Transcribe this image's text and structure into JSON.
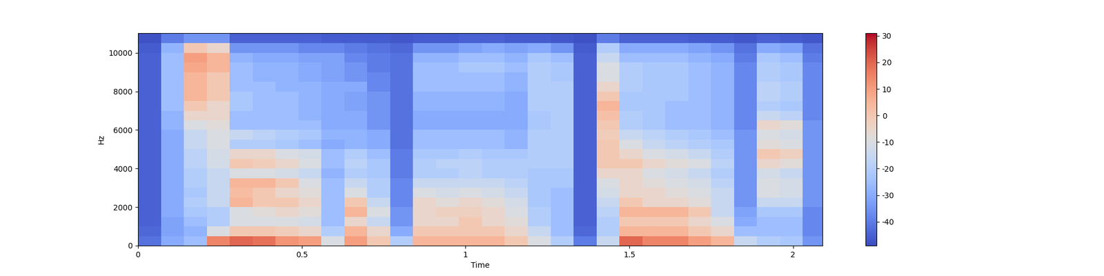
{
  "chart_data": {
    "type": "heatmap",
    "x_label": "Time",
    "y_label": "Hz",
    "x_edges": [
      0,
      0.07,
      0.14,
      0.21,
      0.28,
      0.35,
      0.42,
      0.49,
      0.56,
      0.63,
      0.7,
      0.77,
      0.84,
      0.91,
      0.98,
      1.05,
      1.12,
      1.19,
      1.26,
      1.33,
      1.4,
      1.47,
      1.54,
      1.61,
      1.68,
      1.75,
      1.82,
      1.89,
      1.96,
      2.03,
      2.1
    ],
    "y_edges": [
      0,
      500,
      1000,
      1500,
      2000,
      2500,
      3000,
      3500,
      4000,
      4500,
      5000,
      5500,
      6000,
      6500,
      7000,
      7500,
      8000,
      8500,
      9000,
      9500,
      10000,
      10500,
      11025
    ],
    "cells": [
      [
        -42,
        -44,
        -45,
        -45,
        -45,
        -45,
        -45,
        -45,
        -45,
        -45,
        -45,
        -45,
        -45,
        -45,
        -45,
        -45,
        -45,
        -45,
        -45,
        -45,
        -46,
        -48
      ],
      [
        -30,
        -32,
        -32,
        -30,
        -30,
        -30,
        -30,
        -30,
        -30,
        -30,
        -30,
        -30,
        -28,
        -28,
        -25,
        -25,
        -25,
        -25,
        -25,
        -25,
        -28,
        -40
      ],
      [
        -25,
        -28,
        -25,
        -22,
        -20,
        -22,
        -20,
        -20,
        -18,
        -18,
        -15,
        -15,
        -10,
        -5,
        0,
        5,
        5,
        5,
        8,
        10,
        0,
        -35
      ],
      [
        15,
        -10,
        -20,
        -20,
        -15,
        -15,
        -15,
        -15,
        -12,
        -12,
        -10,
        -10,
        -8,
        -5,
        -5,
        0,
        0,
        0,
        5,
        5,
        -5,
        -35
      ],
      [
        20,
        0,
        -10,
        -10,
        5,
        3,
        5,
        -10,
        0,
        -5,
        -20,
        -15,
        -25,
        -25,
        -22,
        -22,
        -25,
        -25,
        -25,
        -28,
        -35,
        -45
      ],
      [
        18,
        0,
        -10,
        -8,
        0,
        0,
        5,
        -10,
        -2,
        -5,
        -20,
        -18,
        -25,
        -25,
        -25,
        -25,
        -25,
        -28,
        -28,
        -30,
        -35,
        -45
      ],
      [
        12,
        -2,
        -10,
        -5,
        0,
        -5,
        0,
        -12,
        -5,
        -10,
        -22,
        -20,
        -25,
        -25,
        -25,
        -25,
        -28,
        -28,
        -28,
        -30,
        -35,
        -45
      ],
      [
        10,
        -5,
        -12,
        -8,
        -5,
        -8,
        -10,
        -15,
        -10,
        -12,
        -25,
        -22,
        -25,
        -28,
        -28,
        -28,
        -28,
        -30,
        -30,
        -32,
        -38,
        -45
      ],
      [
        -10,
        -20,
        -25,
        -25,
        -25,
        -25,
        -25,
        -28,
        -25,
        -25,
        -30,
        -28,
        -30,
        -30,
        -30,
        -30,
        -30,
        -32,
        -32,
        -32,
        -38,
        -46
      ],
      [
        10,
        5,
        -5,
        5,
        0,
        -10,
        -15,
        -20,
        -18,
        -20,
        -28,
        -28,
        -30,
        -30,
        -32,
        -32,
        -30,
        -35,
        -35,
        -38,
        -40,
        -46
      ],
      [
        0,
        -5,
        -15,
        -10,
        -15,
        -20,
        -20,
        -22,
        -22,
        -25,
        -30,
        -30,
        -35,
        -35,
        -35,
        -35,
        -38,
        -38,
        -40,
        -40,
        -42,
        -46
      ],
      [
        -20,
        -30,
        -35,
        -35,
        -38,
        -38,
        -38,
        -40,
        -40,
        -40,
        -42,
        -42,
        -42,
        -42,
        -42,
        -42,
        -42,
        -42,
        -42,
        -42,
        -44,
        -47
      ],
      [
        5,
        0,
        -5,
        -5,
        -5,
        -10,
        -15,
        -20,
        -20,
        -22,
        -25,
        -25,
        -30,
        -30,
        -28,
        -28,
        -25,
        -25,
        -25,
        -28,
        -35,
        -46
      ],
      [
        5,
        0,
        -5,
        -3,
        -8,
        -12,
        -15,
        -20,
        -18,
        -22,
        -25,
        -25,
        -30,
        -30,
        -28,
        -28,
        -25,
        -25,
        -25,
        -28,
        -35,
        -46
      ],
      [
        5,
        0,
        0,
        -3,
        -5,
        -10,
        -15,
        -18,
        -18,
        -20,
        -25,
        -25,
        -30,
        -30,
        -28,
        -28,
        -25,
        -25,
        -22,
        -25,
        -32,
        -45
      ],
      [
        5,
        0,
        -5,
        -5,
        -8,
        -12,
        -15,
        -20,
        -20,
        -22,
        -25,
        -25,
        -30,
        -30,
        -28,
        -28,
        -25,
        -25,
        -22,
        -25,
        -30,
        -45
      ],
      [
        0,
        -5,
        -8,
        -10,
        -12,
        -15,
        -18,
        -20,
        -20,
        -22,
        -28,
        -28,
        -30,
        -30,
        -30,
        -30,
        -28,
        -28,
        -25,
        -28,
        -32,
        -46
      ],
      [
        -10,
        -15,
        -20,
        -20,
        -22,
        -22,
        -22,
        -22,
        -20,
        -20,
        -20,
        -20,
        -22,
        -22,
        -20,
        -20,
        -20,
        -20,
        -20,
        -22,
        -30,
        -46
      ],
      [
        -20,
        -25,
        -25,
        -25,
        -25,
        -25,
        -22,
        -22,
        -20,
        -20,
        -20,
        -20,
        -20,
        -20,
        -20,
        -20,
        -20,
        -22,
        -22,
        -25,
        -35,
        -47
      ],
      [
        -40,
        -44,
        -45,
        -45,
        -45,
        -45,
        -45,
        -45,
        -45,
        -45,
        -45,
        -45,
        -45,
        -45,
        -45,
        -45,
        -45,
        -45,
        -45,
        -45,
        -46,
        -48
      ],
      [
        -15,
        -20,
        -20,
        -18,
        -15,
        -12,
        -10,
        -5,
        0,
        0,
        0,
        -2,
        0,
        2,
        5,
        0,
        -5,
        -10,
        -10,
        -15,
        -20,
        -40
      ],
      [
        20,
        5,
        0,
        5,
        0,
        -5,
        -5,
        -5,
        0,
        -5,
        -10,
        -15,
        -20,
        -20,
        -22,
        -22,
        -20,
        -20,
        -20,
        -25,
        -30,
        -45
      ],
      [
        15,
        5,
        0,
        5,
        -5,
        -5,
        -8,
        -10,
        -5,
        -10,
        -15,
        -18,
        -22,
        -22,
        -22,
        -22,
        -22,
        -22,
        -22,
        -25,
        -30,
        -45
      ],
      [
        15,
        5,
        0,
        5,
        -5,
        -8,
        -10,
        -12,
        -8,
        -12,
        -18,
        -20,
        -25,
        -25,
        -25,
        -22,
        -22,
        -22,
        -22,
        -25,
        -30,
        -45
      ],
      [
        10,
        0,
        -5,
        0,
        -8,
        -10,
        -12,
        -15,
        -10,
        -15,
        -20,
        -22,
        -25,
        -25,
        -25,
        -25,
        -25,
        -25,
        -25,
        -28,
        -32,
        -46
      ],
      [
        5,
        -5,
        -10,
        -15,
        -15,
        -15,
        -18,
        -20,
        -18,
        -20,
        -22,
        -25,
        -28,
        -28,
        -28,
        -28,
        -28,
        -28,
        -28,
        -30,
        -35,
        -46
      ],
      [
        -15,
        -25,
        -30,
        -32,
        -35,
        -35,
        -35,
        -35,
        -35,
        -35,
        -35,
        -35,
        -38,
        -38,
        -38,
        -38,
        -38,
        -38,
        -38,
        -40,
        -42,
        -47
      ],
      [
        -20,
        -25,
        -25,
        -22,
        -15,
        -10,
        -10,
        -12,
        -5,
        0,
        -8,
        -10,
        -5,
        -15,
        -20,
        -18,
        -18,
        -20,
        -20,
        -22,
        -30,
        -45
      ],
      [
        -22,
        -25,
        -25,
        -22,
        -15,
        -12,
        -12,
        -15,
        -8,
        -3,
        -10,
        -12,
        -8,
        -18,
        -22,
        -20,
        -20,
        -22,
        -22,
        -25,
        -32,
        -46
      ],
      [
        -35,
        -38,
        -38,
        -38,
        -35,
        -35,
        -35,
        -35,
        -35,
        -35,
        -35,
        -35,
        -35,
        -38,
        -38,
        -38,
        -38,
        -38,
        -38,
        -40,
        -42,
        -47
      ]
    ],
    "xlim": [
      0,
      2.09
    ],
    "xticks": [
      0,
      0.5,
      1,
      1.5,
      2
    ],
    "ylim": [
      0,
      11025
    ],
    "yticks": [
      0,
      2000,
      4000,
      6000,
      8000,
      10000
    ],
    "colorbar_lim": [
      -49,
      31
    ],
    "colorbar_ticks": [
      -40,
      -30,
      -20,
      -10,
      0,
      10,
      20,
      30
    ]
  }
}
